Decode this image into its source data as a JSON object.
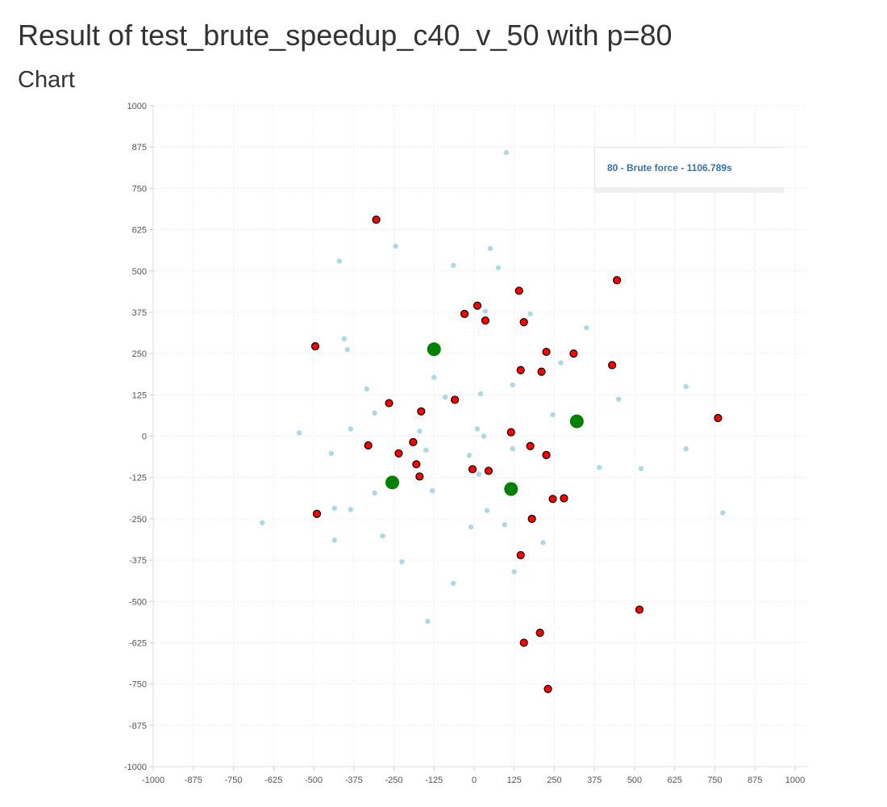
{
  "page": {
    "title": "Result of test_brute_speedup_c40_v_50 with p=80",
    "section_title": "Chart"
  },
  "legend": {
    "entry": "80 - Brute force - 1106.789s",
    "color": "#3572a5"
  },
  "chart_data": {
    "type": "scatter",
    "title": "",
    "xlabel": "",
    "ylabel": "",
    "xlim": [
      -1000,
      1000
    ],
    "ylim": [
      -1000,
      1000
    ],
    "xticks": [
      -1000,
      -875,
      -750,
      -625,
      -500,
      -375,
      -250,
      -125,
      0,
      125,
      250,
      375,
      500,
      625,
      750,
      875,
      1000
    ],
    "yticks": [
      1000,
      875,
      750,
      625,
      500,
      375,
      250,
      125,
      0,
      -125,
      -250,
      -375,
      -500,
      -625,
      -750,
      -875,
      -1000
    ],
    "grid": true,
    "legend_position": "top-right",
    "series": [
      {
        "role": "vertices",
        "color": "#add8e6",
        "points": [
          [
            100,
            858
          ],
          [
            -245,
            575
          ],
          [
            50,
            568
          ],
          [
            -420,
            530
          ],
          [
            -65,
            517
          ],
          [
            75,
            510
          ],
          [
            35,
            378
          ],
          [
            175,
            370
          ],
          [
            350,
            328
          ],
          [
            -405,
            295
          ],
          [
            -395,
            262
          ],
          [
            270,
            222
          ],
          [
            -125,
            178
          ],
          [
            120,
            155
          ],
          [
            660,
            150
          ],
          [
            -335,
            143
          ],
          [
            20,
            128
          ],
          [
            -90,
            118
          ],
          [
            450,
            112
          ],
          [
            -310,
            70
          ],
          [
            245,
            65
          ],
          [
            -385,
            22
          ],
          [
            10,
            22
          ],
          [
            -170,
            15
          ],
          [
            -545,
            10
          ],
          [
            30,
            0
          ],
          [
            120,
            -38
          ],
          [
            660,
            -38
          ],
          [
            -150,
            -42
          ],
          [
            -445,
            -52
          ],
          [
            -15,
            -58
          ],
          [
            390,
            -95
          ],
          [
            520,
            -98
          ],
          [
            15,
            -115
          ],
          [
            -130,
            -165
          ],
          [
            -310,
            -172
          ],
          [
            40,
            -225
          ],
          [
            -435,
            -218
          ],
          [
            -385,
            -222
          ],
          [
            -660,
            -262
          ],
          [
            95,
            -268
          ],
          [
            -10,
            -275
          ],
          [
            -285,
            -302
          ],
          [
            -435,
            -315
          ],
          [
            215,
            -322
          ],
          [
            -225,
            -380
          ],
          [
            125,
            -410
          ],
          [
            -65,
            -445
          ],
          [
            -145,
            -560
          ],
          [
            775,
            -232
          ]
        ]
      },
      {
        "role": "red points",
        "color": "#ff0000",
        "points": [
          [
            -305,
            655
          ],
          [
            445,
            472
          ],
          [
            140,
            440
          ],
          [
            10,
            395
          ],
          [
            -30,
            370
          ],
          [
            35,
            350
          ],
          [
            155,
            345
          ],
          [
            -495,
            272
          ],
          [
            225,
            255
          ],
          [
            310,
            250
          ],
          [
            430,
            215
          ],
          [
            145,
            200
          ],
          [
            210,
            195
          ],
          [
            -265,
            100
          ],
          [
            -60,
            110
          ],
          [
            -165,
            75
          ],
          [
            760,
            55
          ],
          [
            115,
            12
          ],
          [
            -330,
            -28
          ],
          [
            -190,
            -18
          ],
          [
            175,
            -30
          ],
          [
            -235,
            -52
          ],
          [
            225,
            -57
          ],
          [
            -180,
            -85
          ],
          [
            -5,
            -100
          ],
          [
            45,
            -105
          ],
          [
            -170,
            -122
          ],
          [
            245,
            -190
          ],
          [
            280,
            -188
          ],
          [
            -490,
            -235
          ],
          [
            180,
            -250
          ],
          [
            145,
            -360
          ],
          [
            515,
            -525
          ],
          [
            205,
            -595
          ],
          [
            155,
            -625
          ],
          [
            230,
            -765
          ]
        ]
      },
      {
        "role": "centers",
        "color": "#008000",
        "points": [
          [
            -125,
            263
          ],
          [
            320,
            45
          ],
          [
            -255,
            -140
          ],
          [
            115,
            -160
          ]
        ]
      }
    ]
  }
}
